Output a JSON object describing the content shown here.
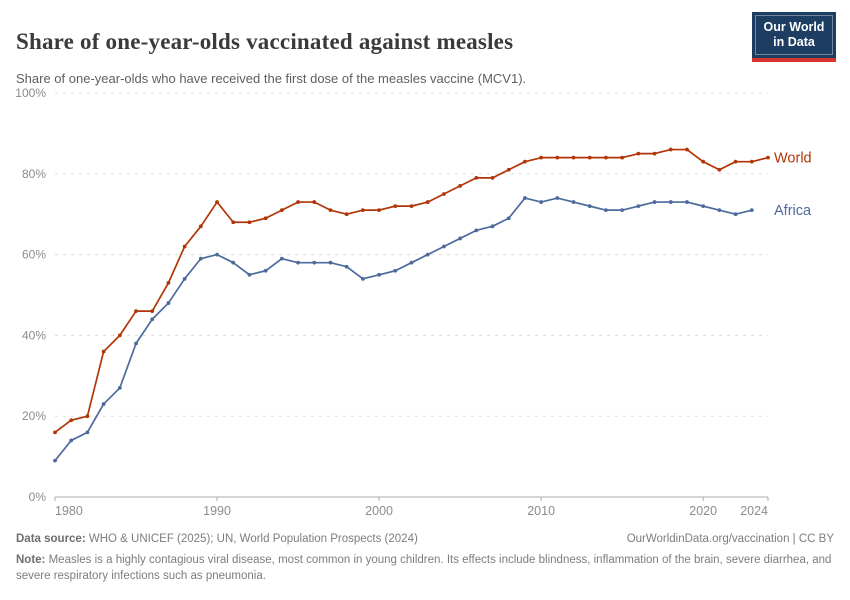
{
  "header": {
    "title": "Share of one-year-olds vaccinated against measles",
    "subtitle": "Share of one-year-olds who have received the first dose of the measles vaccine (MCV1)."
  },
  "logo": {
    "line1": "Our World",
    "line2": "in Data",
    "bg_color": "#1d3d63",
    "accent_color": "#d6362f"
  },
  "chart_data": {
    "type": "line",
    "title": "Share of one-year-olds vaccinated against measles",
    "xlabel": "",
    "ylabel": "",
    "unit": "%",
    "xlim": [
      1980,
      2024
    ],
    "ylim": [
      0,
      100
    ],
    "xticks": [
      1980,
      1990,
      2000,
      2010,
      2020,
      2024
    ],
    "yticks": [
      0,
      20,
      40,
      60,
      80,
      100
    ],
    "grid": "horizontal-dashed",
    "legend_position": "series-end-labels",
    "x": [
      1980,
      1981,
      1982,
      1983,
      1984,
      1985,
      1986,
      1987,
      1988,
      1989,
      1990,
      1991,
      1992,
      1993,
      1994,
      1995,
      1996,
      1997,
      1998,
      1999,
      2000,
      2001,
      2002,
      2003,
      2004,
      2005,
      2006,
      2007,
      2008,
      2009,
      2010,
      2011,
      2012,
      2013,
      2014,
      2015,
      2016,
      2017,
      2018,
      2019,
      2020,
      2021,
      2022,
      2023,
      2024
    ],
    "series": [
      {
        "name": "World",
        "color": "#b13507",
        "values": [
          16,
          19,
          20,
          36,
          40,
          46,
          46,
          53,
          62,
          67,
          73,
          68,
          68,
          69,
          71,
          73,
          73,
          71,
          70,
          71,
          71,
          72,
          72,
          73,
          75,
          77,
          79,
          79,
          81,
          83,
          84,
          84,
          84,
          84,
          84,
          84,
          85,
          85,
          86,
          86,
          83,
          81,
          83,
          83,
          84
        ]
      },
      {
        "name": "Africa",
        "color": "#4c6a9c",
        "values": [
          9,
          14,
          16,
          23,
          27,
          38,
          44,
          48,
          54,
          59,
          60,
          58,
          55,
          56,
          59,
          58,
          58,
          58,
          57,
          54,
          55,
          56,
          58,
          60,
          62,
          64,
          66,
          67,
          69,
          74,
          73,
          74,
          73,
          72,
          71,
          71,
          72,
          73,
          73,
          73,
          72,
          71,
          70,
          71,
          null
        ]
      }
    ],
    "style": {
      "gridline_color": "#dcdcdc",
      "axis_color": "#ababab",
      "tick_label_color": "#8c8c8c"
    }
  },
  "footer": {
    "datasource_label": "Data source:",
    "datasource_text": "WHO & UNICEF (2025); UN, World Population Prospects (2024)",
    "attribution": "OurWorldinData.org/vaccination | CC BY",
    "note_label": "Note:",
    "note_text": "Measles is a highly contagious viral disease, most common in young children. Its effects include blindness, inflammation of the brain, severe diarrhea, and severe respiratory infections such as pneumonia."
  }
}
